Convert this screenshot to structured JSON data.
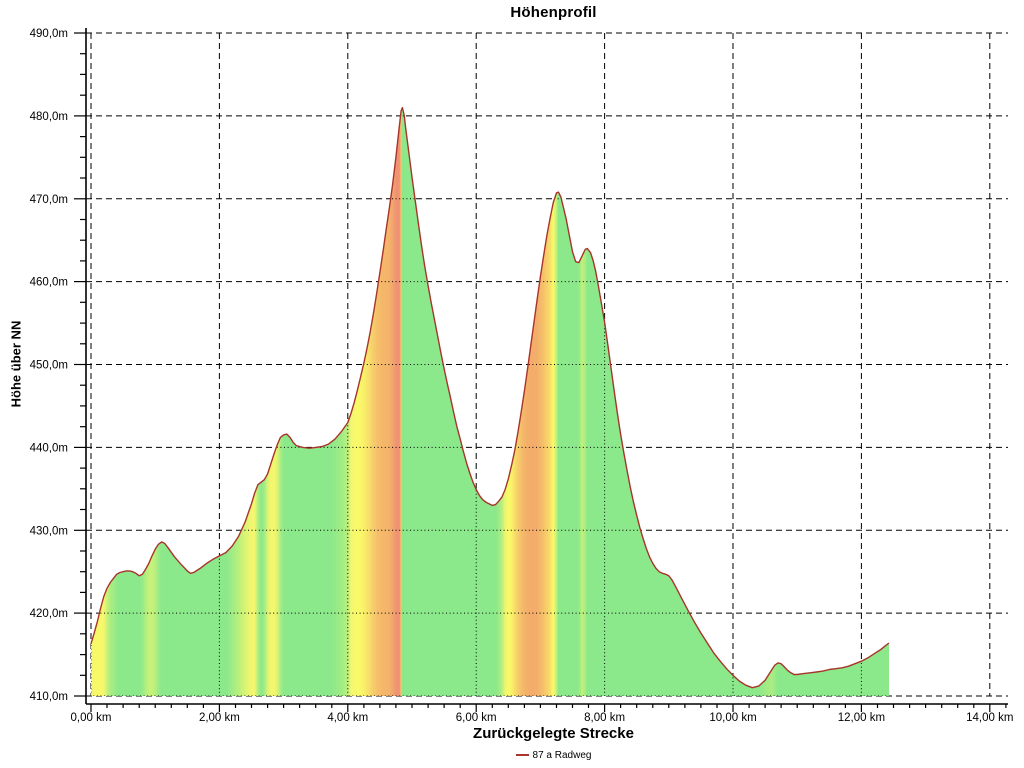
{
  "title": "Höhenprofil",
  "y_axis": {
    "title": "Höhe über NN",
    "labels": [
      "490,0m",
      "480,0m",
      "470,0m",
      "460,0m",
      "450,0m",
      "440,0m",
      "430,0m",
      "420,0m",
      "410,0m"
    ],
    "min": 410,
    "max": 490,
    "major_step": 10,
    "minor_step": 2.5
  },
  "x_axis": {
    "title": "Zurückgelegte Strecke",
    "labels": [
      "0,00 km",
      "2,00 km",
      "4,00 km",
      "6,00 km",
      "8,00 km",
      "10,00 km",
      "12,00 km",
      "14,00 km"
    ],
    "min": 0,
    "max": 14,
    "major_step": 2,
    "minor_step": 0.25
  },
  "legend": {
    "label": "87 a Radweg",
    "line_color": "#a8342a"
  },
  "colors": {
    "background": "#ffffff",
    "text": "#000000",
    "grid": "#000000",
    "profile_line": "#a8342a",
    "slope_fill_scale": [
      {
        "uphill_pct": 0.6,
        "color": "#8be88b"
      },
      {
        "uphill_pct": 1.5,
        "color": "#bbf07c"
      },
      {
        "uphill_pct": 2.3,
        "color": "#f3f66e"
      },
      {
        "uphill_pct": 3.2,
        "color": "#fafa68"
      },
      {
        "uphill_pct": 4.4,
        "color": "#f7d26a"
      },
      {
        "uphill_pct": 5.6,
        "color": "#f3ac6a"
      },
      {
        "uphill_pct": 7.2,
        "color": "#ee8c74"
      },
      {
        "uphill_pct": 9.0,
        "color": "#ea8070"
      }
    ]
  },
  "chart_data": {
    "type": "area",
    "title": "Höhenprofil",
    "xlabel": "Zurückgelegte Strecke",
    "ylabel": "Höhe über NN",
    "xlim": [
      0,
      14
    ],
    "ylim": [
      410,
      490
    ],
    "x_unit": "km",
    "y_unit": "m",
    "grid": true,
    "legend_position": "bottom",
    "series": [
      {
        "name": "87 a Radweg",
        "line_color": "#a8342a",
        "points": [
          [
            0.0,
            416.3
          ],
          [
            0.05,
            417.6
          ],
          [
            0.1,
            419.0
          ],
          [
            0.15,
            420.6
          ],
          [
            0.2,
            422.0
          ],
          [
            0.25,
            423.0
          ],
          [
            0.3,
            423.7
          ],
          [
            0.35,
            424.2
          ],
          [
            0.4,
            424.7
          ],
          [
            0.45,
            424.9
          ],
          [
            0.5,
            425.0
          ],
          [
            0.55,
            425.1
          ],
          [
            0.6,
            425.1
          ],
          [
            0.65,
            425.0
          ],
          [
            0.7,
            424.8
          ],
          [
            0.75,
            424.5
          ],
          [
            0.8,
            424.7
          ],
          [
            0.85,
            425.3
          ],
          [
            0.9,
            426.0
          ],
          [
            0.95,
            426.9
          ],
          [
            1.0,
            427.7
          ],
          [
            1.05,
            428.3
          ],
          [
            1.1,
            428.6
          ],
          [
            1.15,
            428.4
          ],
          [
            1.2,
            427.9
          ],
          [
            1.3,
            426.8
          ],
          [
            1.4,
            425.9
          ],
          [
            1.5,
            425.1
          ],
          [
            1.55,
            424.8
          ],
          [
            1.6,
            424.9
          ],
          [
            1.7,
            425.4
          ],
          [
            1.8,
            426.0
          ],
          [
            1.9,
            426.5
          ],
          [
            2.0,
            426.9
          ],
          [
            2.1,
            427.3
          ],
          [
            2.2,
            428.1
          ],
          [
            2.3,
            429.3
          ],
          [
            2.4,
            431.0
          ],
          [
            2.5,
            433.2
          ],
          [
            2.55,
            434.5
          ],
          [
            2.6,
            435.5
          ],
          [
            2.65,
            435.8
          ],
          [
            2.7,
            436.1
          ],
          [
            2.75,
            436.8
          ],
          [
            2.8,
            438.0
          ],
          [
            2.85,
            439.2
          ],
          [
            2.9,
            440.3
          ],
          [
            2.95,
            441.2
          ],
          [
            3.0,
            441.5
          ],
          [
            3.05,
            441.6
          ],
          [
            3.1,
            441.2
          ],
          [
            3.15,
            440.6
          ],
          [
            3.2,
            440.2
          ],
          [
            3.3,
            440.0
          ],
          [
            3.4,
            439.9
          ],
          [
            3.5,
            440.0
          ],
          [
            3.6,
            440.1
          ],
          [
            3.7,
            440.4
          ],
          [
            3.8,
            441.0
          ],
          [
            3.9,
            441.9
          ],
          [
            4.0,
            443.0
          ],
          [
            4.05,
            444.1
          ],
          [
            4.1,
            445.4
          ],
          [
            4.15,
            446.9
          ],
          [
            4.2,
            448.5
          ],
          [
            4.25,
            450.2
          ],
          [
            4.3,
            452.0
          ],
          [
            4.35,
            454.0
          ],
          [
            4.4,
            456.2
          ],
          [
            4.45,
            458.6
          ],
          [
            4.5,
            461.1
          ],
          [
            4.55,
            463.7
          ],
          [
            4.6,
            466.4
          ],
          [
            4.65,
            469.0
          ],
          [
            4.7,
            471.8
          ],
          [
            4.75,
            475.0
          ],
          [
            4.8,
            478.6
          ],
          [
            4.83,
            480.6
          ],
          [
            4.85,
            481.0
          ],
          [
            4.88,
            480.0
          ],
          [
            4.9,
            478.6
          ],
          [
            4.95,
            475.6
          ],
          [
            5.0,
            472.6
          ],
          [
            5.05,
            469.8
          ],
          [
            5.1,
            467.0
          ],
          [
            5.15,
            464.3
          ],
          [
            5.2,
            461.8
          ],
          [
            5.25,
            459.5
          ],
          [
            5.3,
            457.4
          ],
          [
            5.35,
            455.4
          ],
          [
            5.4,
            453.4
          ],
          [
            5.45,
            451.4
          ],
          [
            5.5,
            449.5
          ],
          [
            5.55,
            447.7
          ],
          [
            5.6,
            446.0
          ],
          [
            5.65,
            444.2
          ],
          [
            5.7,
            442.5
          ],
          [
            5.75,
            441.0
          ],
          [
            5.8,
            439.5
          ],
          [
            5.85,
            438.1
          ],
          [
            5.9,
            436.9
          ],
          [
            5.95,
            435.8
          ],
          [
            6.0,
            434.9
          ],
          [
            6.05,
            434.2
          ],
          [
            6.1,
            433.7
          ],
          [
            6.15,
            433.4
          ],
          [
            6.2,
            433.2
          ],
          [
            6.25,
            433.0
          ],
          [
            6.3,
            433.1
          ],
          [
            6.35,
            433.5
          ],
          [
            6.4,
            434.0
          ],
          [
            6.45,
            434.9
          ],
          [
            6.5,
            436.2
          ],
          [
            6.55,
            437.8
          ],
          [
            6.6,
            439.6
          ],
          [
            6.65,
            441.8
          ],
          [
            6.7,
            444.2
          ],
          [
            6.75,
            446.8
          ],
          [
            6.8,
            449.5
          ],
          [
            6.85,
            452.3
          ],
          [
            6.9,
            455.1
          ],
          [
            6.95,
            457.9
          ],
          [
            7.0,
            460.6
          ],
          [
            7.05,
            463.1
          ],
          [
            7.1,
            465.5
          ],
          [
            7.15,
            467.6
          ],
          [
            7.2,
            469.5
          ],
          [
            7.25,
            470.7
          ],
          [
            7.28,
            470.8
          ],
          [
            7.32,
            470.2
          ],
          [
            7.35,
            469.2
          ],
          [
            7.4,
            467.6
          ],
          [
            7.45,
            465.6
          ],
          [
            7.5,
            463.6
          ],
          [
            7.55,
            462.4
          ],
          [
            7.6,
            462.3
          ],
          [
            7.65,
            463.1
          ],
          [
            7.7,
            463.9
          ],
          [
            7.73,
            464.0
          ],
          [
            7.78,
            463.5
          ],
          [
            7.82,
            462.6
          ],
          [
            7.86,
            461.3
          ],
          [
            7.9,
            459.6
          ],
          [
            7.95,
            457.4
          ],
          [
            8.0,
            455.1
          ],
          [
            8.05,
            452.4
          ],
          [
            8.1,
            449.6
          ],
          [
            8.15,
            446.8
          ],
          [
            8.2,
            444.1
          ],
          [
            8.25,
            441.6
          ],
          [
            8.3,
            439.3
          ],
          [
            8.35,
            437.2
          ],
          [
            8.4,
            435.2
          ],
          [
            8.45,
            433.4
          ],
          [
            8.5,
            431.8
          ],
          [
            8.55,
            430.3
          ],
          [
            8.6,
            429.0
          ],
          [
            8.65,
            427.8
          ],
          [
            8.7,
            426.8
          ],
          [
            8.75,
            426.0
          ],
          [
            8.8,
            425.4
          ],
          [
            8.85,
            425.0
          ],
          [
            8.9,
            424.8
          ],
          [
            8.95,
            424.7
          ],
          [
            9.0,
            424.5
          ],
          [
            9.05,
            424.0
          ],
          [
            9.1,
            423.3
          ],
          [
            9.2,
            421.8
          ],
          [
            9.3,
            420.3
          ],
          [
            9.4,
            418.9
          ],
          [
            9.5,
            417.6
          ],
          [
            9.6,
            416.4
          ],
          [
            9.7,
            415.2
          ],
          [
            9.8,
            414.2
          ],
          [
            9.9,
            413.3
          ],
          [
            10.0,
            412.5
          ],
          [
            10.1,
            411.8
          ],
          [
            10.2,
            411.3
          ],
          [
            10.3,
            411.0
          ],
          [
            10.4,
            411.2
          ],
          [
            10.5,
            411.9
          ],
          [
            10.6,
            413.1
          ],
          [
            10.65,
            413.7
          ],
          [
            10.7,
            414.0
          ],
          [
            10.75,
            413.9
          ],
          [
            10.8,
            413.5
          ],
          [
            10.85,
            413.1
          ],
          [
            10.9,
            412.8
          ],
          [
            10.95,
            412.6
          ],
          [
            11.0,
            412.6
          ],
          [
            11.1,
            412.7
          ],
          [
            11.2,
            412.8
          ],
          [
            11.3,
            412.9
          ],
          [
            11.4,
            413.0
          ],
          [
            11.5,
            413.2
          ],
          [
            11.6,
            413.3
          ],
          [
            11.7,
            413.4
          ],
          [
            11.8,
            413.6
          ],
          [
            11.9,
            413.9
          ],
          [
            12.0,
            414.2
          ],
          [
            12.1,
            414.6
          ],
          [
            12.2,
            415.1
          ],
          [
            12.3,
            415.6
          ],
          [
            12.38,
            416.1
          ],
          [
            12.43,
            416.4
          ]
        ]
      }
    ]
  }
}
